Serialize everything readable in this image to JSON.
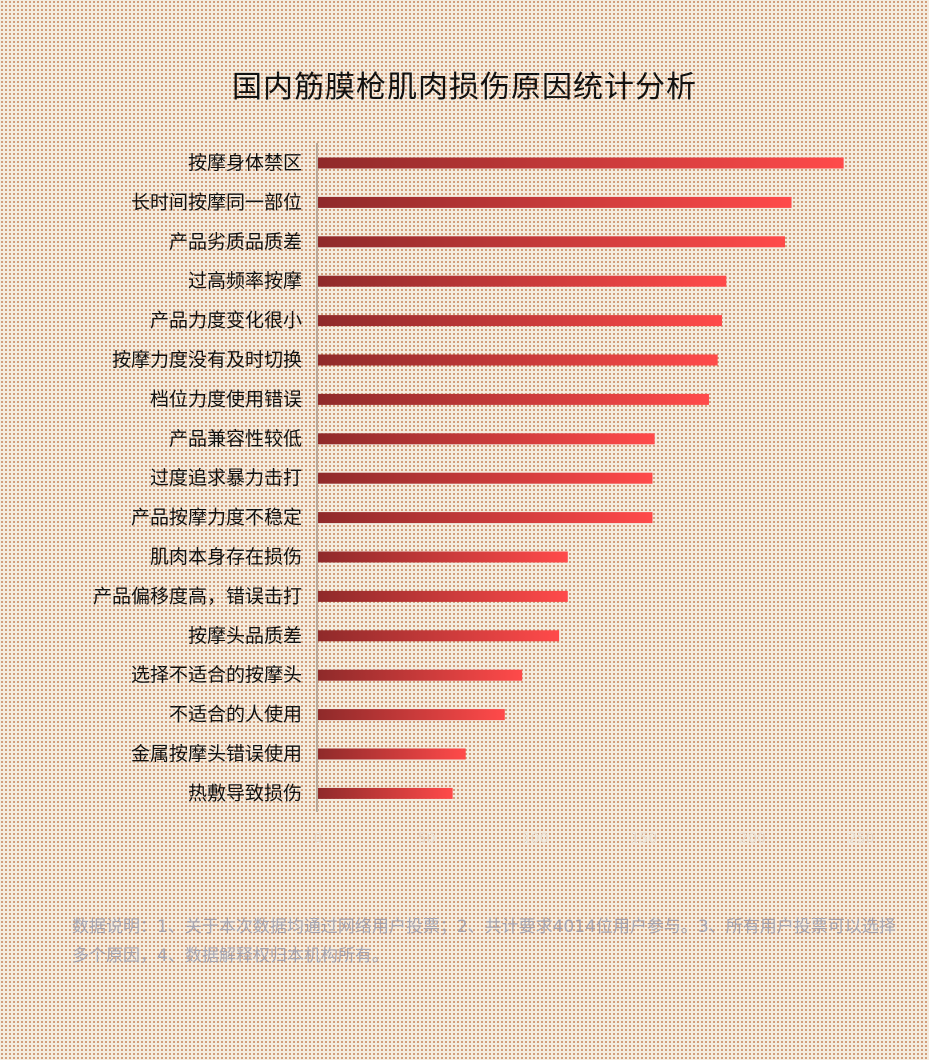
{
  "colors": {
    "bar_dark": "#8f2a2a",
    "bar_light": "#ff4a4a",
    "axis": "#b9a99a"
  },
  "chart_data": {
    "type": "bar",
    "orientation": "horizontal",
    "title": "国内筋膜枪肌肉损伤原因统计分析",
    "xlabel": "",
    "ylabel": "",
    "xlim": [
      0,
      250
    ],
    "x_ticks": [
      0,
      50,
      100,
      150,
      200,
      250
    ],
    "grid": false,
    "legend": "none",
    "categories": [
      "按摩身体禁区",
      "长时间按摩同一部位",
      "产品劣质品质差",
      "过高频率按摩",
      "产品力度变化很小",
      "按摩力度没有及时切换",
      "档位力度使用错误",
      "产品兼容性较低",
      "过度追求暴力击打",
      "产品按摩力度不稳定",
      "肌肉本身存在损伤",
      "产品偏移度高，错误击打",
      "按摩头品质差",
      "选择不适合的按摩头",
      "不适合的人使用",
      "金属按摩头错误使用",
      "热敷导致损伤"
    ],
    "values": [
      242,
      218,
      215,
      188,
      186,
      184,
      180,
      155,
      154,
      154,
      115,
      115,
      111,
      94,
      86,
      68,
      62
    ]
  },
  "footnote": "数据说明：1、关于本次数据均通过网络用户投票；2、共计要求4014位用户参与。3、所有用户投票可以选择多个原因，4、数据解释权归本机构所有。"
}
